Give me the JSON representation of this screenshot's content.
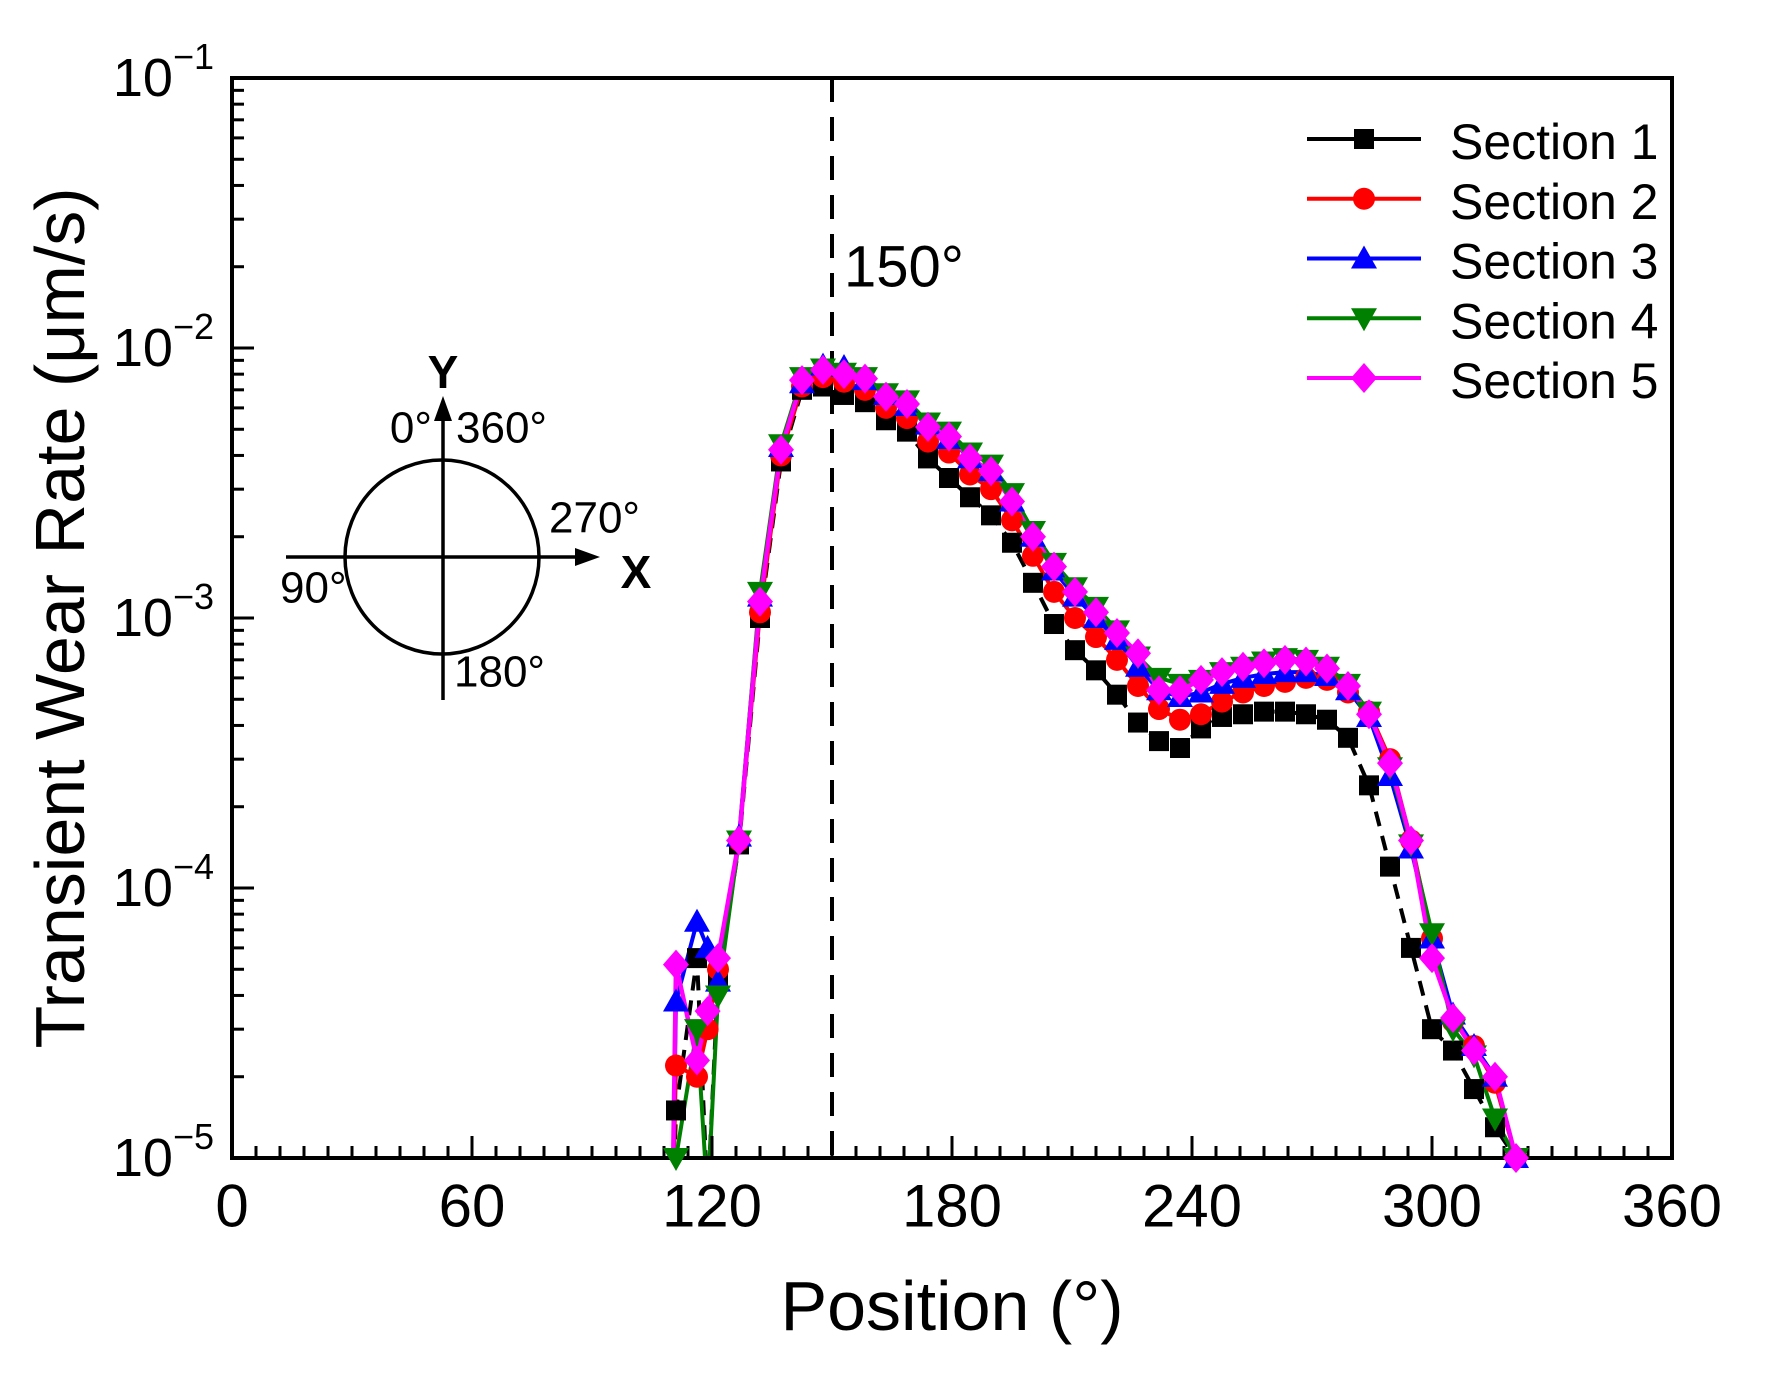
{
  "figure": {
    "background": "#ffffff"
  },
  "axes": {
    "x": {
      "title": "Position (°)",
      "min": 0,
      "max": 360,
      "major_tick_labels": [
        "0",
        "60",
        "120",
        "180",
        "240",
        "300",
        "360"
      ],
      "major_tick_step": 60,
      "minor_tick_step": 6
    },
    "y": {
      "title": "Transient Wear Rate (μm/s)",
      "scale": "log",
      "tick_base": "10",
      "tick_exponents": [
        -1,
        -2,
        -3,
        -4,
        -5
      ]
    }
  },
  "annotation": {
    "label": "150°",
    "x_deg": 150
  },
  "reference_line": {
    "x_deg": 150,
    "style": "dashed",
    "color": "#000000"
  },
  "legend": {
    "position": "top-right",
    "items": [
      "Section 1",
      "Section 2",
      "Section 3",
      "Section 4",
      "Section 5"
    ]
  },
  "inset": {
    "y_axis_label": "Y",
    "x_axis_label": "X",
    "labels": {
      "top_left": "0°",
      "top_right": "360°",
      "right": "270°",
      "left": "90°",
      "bottom": "180°"
    }
  },
  "chart_data": {
    "type": "line",
    "title": "",
    "xlabel": "Position (°)",
    "ylabel": "Transient Wear Rate (μm/s)",
    "xlim": [
      0,
      360
    ],
    "ylim": [
      1e-05,
      0.1
    ],
    "yscale": "log",
    "grid": false,
    "legend_position": "top-right",
    "x": [
      110,
      111,
      116.25,
      118.9,
      121.5,
      126.75,
      132,
      137.25,
      142.5,
      147.75,
      153,
      158.25,
      163.5,
      168.75,
      174,
      179.25,
      184.5,
      189.75,
      195,
      200.25,
      205.5,
      210.75,
      216,
      221.25,
      226.5,
      231.75,
      237,
      242.25,
      247.5,
      252.75,
      258,
      263.25,
      268.5,
      273.75,
      279,
      284.25,
      289.5,
      294.75,
      300,
      305.25,
      310.5,
      315.75,
      321
    ],
    "series": [
      {
        "name": "Section 1",
        "color": "#000000",
        "marker": "square",
        "line_style": "dashed",
        "values": [
          5e-06,
          1.5e-05,
          5.5e-05,
          7e-06,
          4.5e-05,
          0.000145,
          0.001,
          0.0038,
          0.007,
          0.0072,
          0.0067,
          0.0063,
          0.0054,
          0.0049,
          0.0039,
          0.0033,
          0.0028,
          0.0024,
          0.0019,
          0.00135,
          0.00095,
          0.00076,
          0.00064,
          0.00052,
          0.00041,
          0.00035,
          0.00033,
          0.00039,
          0.00043,
          0.00044,
          0.00045,
          0.00045,
          0.00044,
          0.00042,
          0.00036,
          0.00024,
          0.00012,
          6e-05,
          3e-05,
          2.5e-05,
          1.8e-05,
          1.3e-05,
          1e-05
        ]
      },
      {
        "name": "Section 2",
        "color": "#ff0000",
        "marker": "circle",
        "line_style": "solid",
        "values": [
          5e-06,
          2.2e-05,
          2e-05,
          3e-05,
          5e-05,
          0.00015,
          0.00105,
          0.004,
          0.0072,
          0.0078,
          0.0075,
          0.007,
          0.006,
          0.0055,
          0.0045,
          0.0041,
          0.0034,
          0.003,
          0.0023,
          0.0017,
          0.00125,
          0.001,
          0.00085,
          0.0007,
          0.00056,
          0.00046,
          0.00042,
          0.00044,
          0.00049,
          0.00053,
          0.00056,
          0.00058,
          0.0006,
          0.00059,
          0.00053,
          0.00045,
          0.0003,
          0.00015,
          6.5e-05,
          3.2e-05,
          2.6e-05,
          1.9e-05,
          1e-05
        ]
      },
      {
        "name": "Section 3",
        "color": "#0000ff",
        "marker": "triangle-up",
        "line_style": "solid",
        "values": [
          5e-06,
          3.8e-05,
          7.5e-05,
          6e-05,
          4.5e-05,
          0.000155,
          0.0012,
          0.0043,
          0.0074,
          0.0086,
          0.0085,
          0.0076,
          0.0067,
          0.0061,
          0.0052,
          0.0046,
          0.0039,
          0.0035,
          0.0027,
          0.002,
          0.0015,
          0.0012,
          0.001,
          0.00083,
          0.00066,
          0.00054,
          0.00051,
          0.00053,
          0.00057,
          0.0006,
          0.00062,
          0.00063,
          0.00063,
          0.00061,
          0.00054,
          0.00043,
          0.00026,
          0.00014,
          6.5e-05,
          3.4e-05,
          2.6e-05,
          2e-05,
          1e-05
        ]
      },
      {
        "name": "Section 4",
        "color": "#008000",
        "marker": "triangle-down",
        "line_style": "solid",
        "values": [
          5e-06,
          1e-05,
          3e-05,
          7e-06,
          4e-05,
          0.00015,
          0.00125,
          0.0044,
          0.0078,
          0.0084,
          0.0081,
          0.0078,
          0.0068,
          0.0064,
          0.0053,
          0.0049,
          0.0041,
          0.0037,
          0.0029,
          0.0021,
          0.0016,
          0.0013,
          0.0011,
          0.0009,
          0.00072,
          0.0006,
          0.00057,
          0.00059,
          0.00063,
          0.00066,
          0.00069,
          0.00071,
          0.0007,
          0.00066,
          0.00057,
          0.00045,
          0.00028,
          0.000145,
          6.8e-05,
          3e-05,
          2.4e-05,
          1.4e-05,
          1e-05
        ]
      },
      {
        "name": "Section 5",
        "color": "#ff00ff",
        "marker": "diamond",
        "line_style": "solid",
        "values": [
          5e-06,
          5.2e-05,
          2.3e-05,
          3.5e-05,
          5.5e-05,
          0.00015,
          0.00115,
          0.0042,
          0.0076,
          0.0083,
          0.008,
          0.0077,
          0.0066,
          0.0062,
          0.0051,
          0.0047,
          0.0039,
          0.0035,
          0.0027,
          0.002,
          0.00155,
          0.00125,
          0.00105,
          0.00088,
          0.00074,
          0.00054,
          0.00054,
          0.00059,
          0.00063,
          0.00066,
          0.00068,
          0.0007,
          0.00069,
          0.00065,
          0.00056,
          0.00044,
          0.00029,
          0.00015,
          5.5e-05,
          3.3e-05,
          2.5e-05,
          2e-05,
          1e-05
        ]
      }
    ]
  }
}
